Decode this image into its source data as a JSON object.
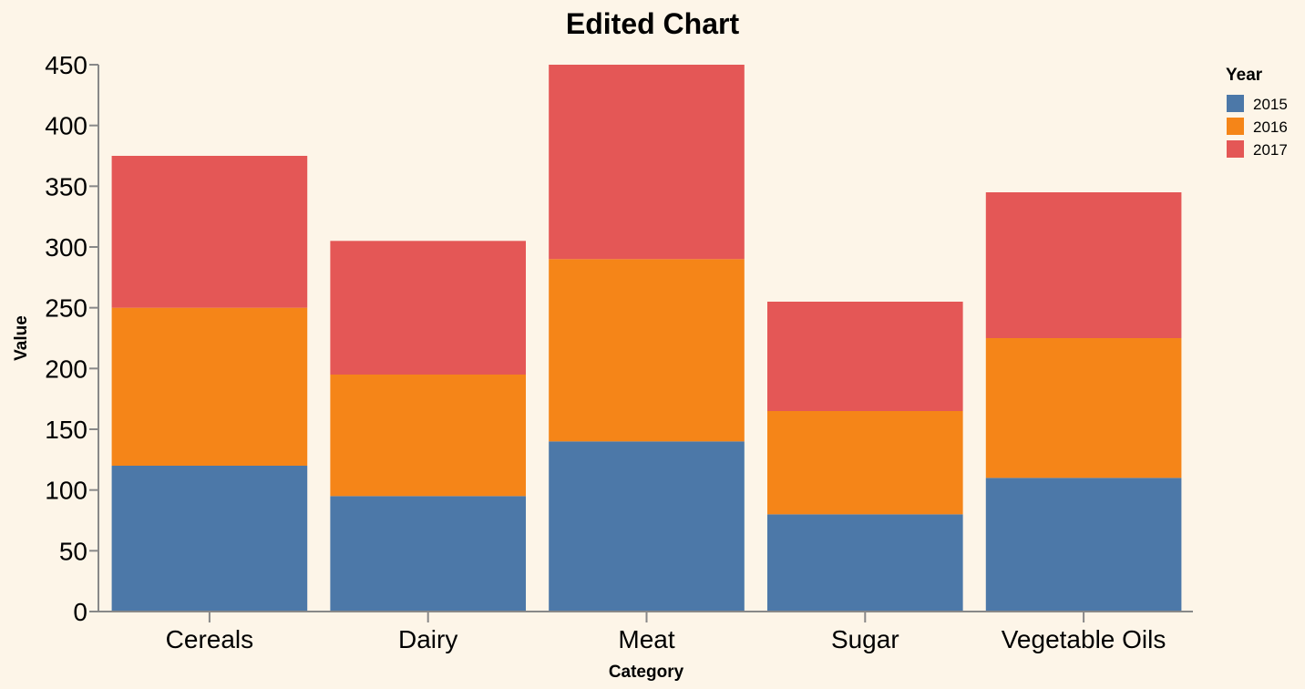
{
  "chart_data": {
    "type": "bar",
    "stacked": true,
    "title": "Edited Chart",
    "xlabel": "Category",
    "ylabel": "Value",
    "categories": [
      "Cereals",
      "Dairy",
      "Meat",
      "Sugar",
      "Vegetable Oils"
    ],
    "series": [
      {
        "name": "2015",
        "color": "#4c78a8",
        "values": [
          120,
          95,
          140,
          80,
          110
        ]
      },
      {
        "name": "2016",
        "color": "#f58518",
        "values": [
          130,
          100,
          150,
          85,
          115
        ]
      },
      {
        "name": "2017",
        "color": "#e45756",
        "values": [
          125,
          110,
          160,
          90,
          120
        ]
      }
    ],
    "ylim": [
      0,
      450
    ],
    "yticks": [
      "0",
      "50",
      "100",
      "150",
      "200",
      "250",
      "300",
      "350",
      "400",
      "450"
    ],
    "grid": false,
    "legend": {
      "title": "Year",
      "placement": "top-right"
    }
  }
}
